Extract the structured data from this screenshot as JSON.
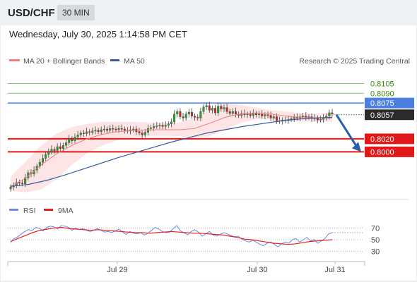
{
  "header": {
    "symbol": "USD/CHF",
    "timeframe": "30 MIN"
  },
  "datetime": "Wednesday, July 30, 2025 1:14:58 PM CET",
  "colors": {
    "resistance": "#4a7fe0",
    "support": "#e01818",
    "target": "#2a5fa8",
    "ma20": "#f08080",
    "ma50": "#3a5a9a",
    "rsi": "#6a8ae8",
    "rsi_ma": "#e02020",
    "bull": "#2aa02a",
    "bear": "#cc2222",
    "top_lines": "#8cc070",
    "band": "#fde0e0"
  },
  "chart_data": [
    {
      "type": "candlestick",
      "legend": {
        "ma": "MA 20 + Bollinger Bands",
        "ma50": "MA 50",
        "credit": "Research © 2025 Trading Central",
        "placement": "top"
      },
      "ylim": [
        0.793,
        0.8125
      ],
      "x_labels": [
        "Jul 29",
        "Jul 30",
        "Jul 31"
      ],
      "levels": [
        {
          "value": 0.8105,
          "label": "0.8105",
          "kind": "resistance"
        },
        {
          "value": 0.809,
          "label": "0.8090",
          "kind": "resistance"
        },
        {
          "value": 0.8075,
          "label": "0.8075",
          "kind": "pivot"
        },
        {
          "value": 0.8057,
          "label": "0.8057",
          "kind": "last"
        },
        {
          "value": 0.802,
          "label": "0.8020",
          "kind": "support"
        },
        {
          "value": 0.8,
          "label": "0.8000",
          "kind": "support"
        }
      ],
      "projection": {
        "from": 0.8057,
        "to": 0.8
      },
      "closes": [
        0.7946,
        0.7948,
        0.7953,
        0.7952,
        0.7951,
        0.796,
        0.7968,
        0.7966,
        0.7972,
        0.7978,
        0.7984,
        0.799,
        0.7996,
        0.8,
        0.8004,
        0.8002,
        0.8008,
        0.8005,
        0.801,
        0.8014,
        0.802,
        0.8017,
        0.8023,
        0.8026,
        0.8029,
        0.8028,
        0.8031,
        0.803,
        0.8032,
        0.8033,
        0.8031,
        0.8034,
        0.8035,
        0.8033,
        0.8036,
        0.8035,
        0.8034,
        0.8036,
        0.8035,
        0.8033,
        0.8032,
        0.8034,
        0.8035,
        0.8031,
        0.8029,
        0.8026,
        0.803,
        0.8036,
        0.8037,
        0.8039,
        0.804,
        0.8041,
        0.8039,
        0.8041,
        0.8043,
        0.8046,
        0.8058,
        0.8062,
        0.8054,
        0.8052,
        0.8058,
        0.8061,
        0.8055,
        0.8053,
        0.8052,
        0.8062,
        0.8069,
        0.8071,
        0.8064,
        0.8067,
        0.806,
        0.807,
        0.8066,
        0.8068,
        0.8062,
        0.8059,
        0.8062,
        0.8058,
        0.8056,
        0.8059,
        0.8057,
        0.8058,
        0.8056,
        0.8059,
        0.8057,
        0.8058,
        0.8055,
        0.8057,
        0.8056,
        0.8052,
        0.8054,
        0.8048,
        0.8047,
        0.8049,
        0.8048,
        0.805,
        0.8051,
        0.8053,
        0.8052,
        0.8054,
        0.8055,
        0.8053,
        0.8054,
        0.8051,
        0.8052,
        0.8049,
        0.805,
        0.8052,
        0.8055,
        0.806,
        0.8058
      ],
      "ma50": [
        0.7947,
        0.795,
        0.7956,
        0.7964,
        0.7973,
        0.7982,
        0.7991,
        0.7999,
        0.8007,
        0.8015,
        0.8022,
        0.8029,
        0.8034,
        0.8039,
        0.8043,
        0.8047,
        0.805,
        0.8052,
        0.8053
      ],
      "ma20": [
        0.7947,
        0.796,
        0.798,
        0.7997,
        0.801,
        0.802,
        0.8027,
        0.8031,
        0.8033,
        0.8034,
        0.8034,
        0.8034,
        0.8036,
        0.8044,
        0.8053,
        0.8058,
        0.806,
        0.8058,
        0.8055,
        0.8053,
        0.8052,
        0.8052
      ],
      "bb_upper": [
        0.7962,
        0.7985,
        0.801,
        0.8028,
        0.8038,
        0.8043,
        0.8046,
        0.8046,
        0.8046,
        0.8045,
        0.8044,
        0.8045,
        0.8052,
        0.8066,
        0.8074,
        0.8072,
        0.8068,
        0.8064,
        0.8062,
        0.806,
        0.8058,
        0.8062
      ],
      "bb_lower": [
        0.794,
        0.7938,
        0.7942,
        0.7958,
        0.798,
        0.7998,
        0.801,
        0.8018,
        0.8022,
        0.8024,
        0.8024,
        0.8024,
        0.8022,
        0.8024,
        0.8034,
        0.8044,
        0.805,
        0.805,
        0.8048,
        0.8046,
        0.8046,
        0.8046
      ]
    },
    {
      "type": "line",
      "legend": {
        "rsi": "RSI",
        "ma": "9MA",
        "placement": "top-left"
      },
      "ylim": [
        20,
        80
      ],
      "ticks": [
        "70",
        "50",
        "30"
      ],
      "rsi": [
        45,
        52,
        55,
        60,
        64,
        67,
        66,
        71,
        69,
        65,
        71,
        73,
        72,
        68,
        74,
        73,
        71,
        66,
        70,
        67,
        69,
        66,
        64,
        66,
        69,
        66,
        63,
        64,
        62,
        65,
        68,
        63,
        59,
        64,
        61,
        60,
        62,
        58,
        61,
        66,
        71,
        68,
        64,
        62,
        63,
        69,
        74,
        65,
        62,
        58,
        64,
        67,
        63,
        56,
        60,
        64,
        58,
        56,
        59,
        62,
        60,
        57,
        55,
        56,
        51,
        48,
        46,
        49,
        46,
        42,
        40,
        44,
        46,
        42,
        38,
        43,
        46,
        44,
        50,
        52,
        46,
        50,
        54,
        48,
        50,
        44,
        48,
        52,
        60,
        62
      ],
      "rsi_ma": [
        47,
        52,
        57,
        62,
        66,
        68,
        70,
        71,
        69,
        68,
        67,
        66,
        67,
        66,
        65,
        64,
        63,
        62,
        62,
        61,
        62,
        63,
        64,
        63,
        62,
        61,
        61,
        60,
        59,
        58,
        56,
        54,
        51,
        50,
        48,
        46,
        44,
        43,
        42,
        43,
        45,
        47,
        48,
        49,
        50
      ]
    }
  ]
}
